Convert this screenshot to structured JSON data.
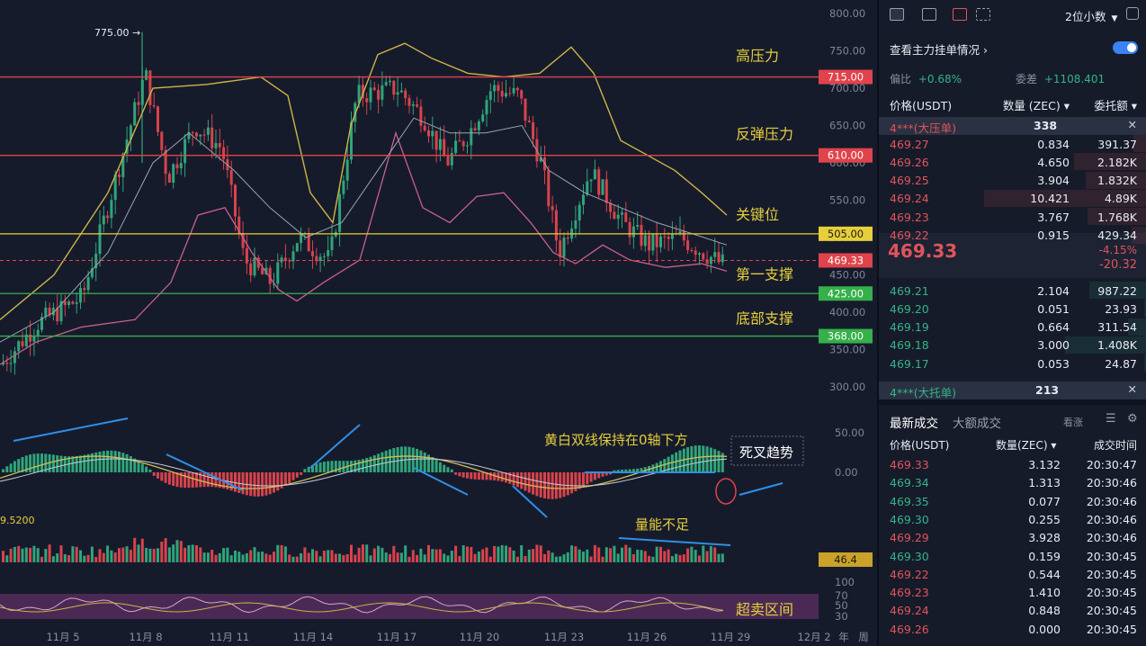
{
  "chart": {
    "price_axis": [
      "800.00",
      "750.00",
      "700.00",
      "650.00",
      "600.00",
      "550.00",
      "500.00",
      "450.00",
      "400.00",
      "350.00",
      "300.00"
    ],
    "high_marker": "775.00",
    "levels": [
      {
        "price": "715.00",
        "name": "高压力",
        "color": "#e0434b"
      },
      {
        "price": "610.00",
        "name": "反弹压力",
        "color": "#e0434b"
      },
      {
        "price": "505.00",
        "name": "关键位",
        "color": "#e6cf3a"
      },
      {
        "price": "469.33",
        "name": "",
        "color": "#e0434b"
      },
      {
        "price": "425.00",
        "name": "第一支撑",
        "color": "#35b04a"
      },
      {
        "price": "368.00",
        "name": "底部支撑",
        "color": "#35b04a"
      }
    ],
    "macd_axis": [
      "50.00",
      "0.00"
    ],
    "macd_note": "黄白双线保持在0轴下方",
    "macd_signal": "死叉趋势",
    "volume_left": "9.5200",
    "volume_note": "量能不足",
    "volume_tag": "46.4",
    "rsi_axis": [
      "100",
      "70",
      "50",
      "30"
    ],
    "rsi_note": "超卖区间",
    "dates": [
      "11月 5",
      "11月 8",
      "11月 11",
      "11月 14",
      "11月 17",
      "11月 20",
      "11月 23",
      "11月 26",
      "11月 29",
      "12月 2"
    ],
    "corner_labels": [
      "年",
      "周"
    ]
  },
  "panel": {
    "toolbar": {
      "decimals": "2位小数"
    },
    "main_order_link": "查看主力挂单情况",
    "stats": [
      {
        "label": "偏比",
        "value": "+0.68%"
      },
      {
        "label": "委差",
        "value": "+1108.401"
      }
    ],
    "headers": {
      "price": "价格(USDT)",
      "qty": "数量 (ZEC)",
      "total": "委托额"
    },
    "big_ask": {
      "label": "4***(大压单)",
      "qty": "338"
    },
    "asks": [
      {
        "price": "469.27",
        "qty": "0.834",
        "total": "391.37"
      },
      {
        "price": "469.26",
        "qty": "4.650",
        "total": "2.182K"
      },
      {
        "price": "469.25",
        "qty": "3.904",
        "total": "1.832K"
      },
      {
        "price": "469.24",
        "qty": "10.421",
        "total": "4.89K"
      },
      {
        "price": "469.23",
        "qty": "3.767",
        "total": "1.768K"
      },
      {
        "price": "469.22",
        "qty": "0.915",
        "total": "429.34"
      }
    ],
    "last_price": "469.33",
    "change_pct": "-4.15%",
    "change_abs": "-20.32",
    "bids": [
      {
        "price": "469.21",
        "qty": "2.104",
        "total": "987.22"
      },
      {
        "price": "469.20",
        "qty": "0.051",
        "total": "23.93"
      },
      {
        "price": "469.19",
        "qty": "0.664",
        "total": "311.54"
      },
      {
        "price": "469.18",
        "qty": "3.000",
        "total": "1.408K"
      },
      {
        "price": "469.17",
        "qty": "0.053",
        "total": "24.87"
      }
    ],
    "big_bid": {
      "label": "4***(大托单)",
      "qty": "213"
    },
    "trades_tabs": {
      "latest": "最新成交",
      "large": "大额成交",
      "filter": "看涨"
    },
    "trade_headers": {
      "price": "价格(USDT)",
      "qty": "数量(ZEC)",
      "time": "成交时间"
    },
    "trades": [
      {
        "price": "469.33",
        "qty": "3.132",
        "time": "20:30:47",
        "side": "sell"
      },
      {
        "price": "469.34",
        "qty": "1.313",
        "time": "20:30:46",
        "side": "buy"
      },
      {
        "price": "469.35",
        "qty": "0.077",
        "time": "20:30:46",
        "side": "buy"
      },
      {
        "price": "469.30",
        "qty": "0.255",
        "time": "20:30:46",
        "side": "buy"
      },
      {
        "price": "469.29",
        "qty": "3.928",
        "time": "20:30:46",
        "side": "sell"
      },
      {
        "price": "469.30",
        "qty": "0.159",
        "time": "20:30:45",
        "side": "buy"
      },
      {
        "price": "469.22",
        "qty": "0.544",
        "time": "20:30:45",
        "side": "sell"
      },
      {
        "price": "469.23",
        "qty": "1.410",
        "time": "20:30:45",
        "side": "sell"
      },
      {
        "price": "469.24",
        "qty": "0.848",
        "time": "20:30:45",
        "side": "sell"
      },
      {
        "price": "469.26",
        "qty": "0.000",
        "time": "20:30:45",
        "side": "sell"
      }
    ]
  }
}
